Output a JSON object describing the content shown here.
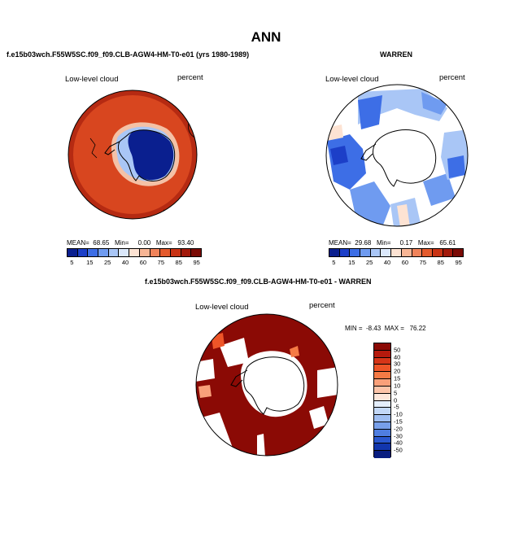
{
  "page": {
    "title": "ANN",
    "left_subtitle": "f.e15b03wch.F55W5SC.f09_f09.CLB-AGW4-HM-T0-e01 (yrs 1980-1989)",
    "right_subtitle": "WARREN",
    "bottom_subtitle": "f.e15b03wch.F55W5SC.f09_f09.CLB-AGW4-HM-T0-e01 - WARREN"
  },
  "chart_data": [
    {
      "type": "heatmap",
      "title": "f.e15b03wch.F55W5SC.f09_f09.CLB-AGW4-HM-T0-e01 (yrs 1980-1989)",
      "variable_label": "Low-level cloud",
      "units_label": "percent",
      "projection": "south polar stereographic",
      "stats": {
        "mean_label": "MEAN=",
        "mean": "68.65",
        "min_label": "Min=",
        "min": "0.00",
        "max_label": "Max=",
        "max": "93.40"
      },
      "colorbar": {
        "orientation": "horizontal",
        "tick_labels": [
          "5",
          "15",
          "25",
          "40",
          "60",
          "75",
          "85",
          "95"
        ],
        "colors": [
          "#0a1f8f",
          "#1c3fc8",
          "#3d6ee6",
          "#6f9bf0",
          "#a9c6f6",
          "#dbe8fb",
          "#fde3d3",
          "#f7b595",
          "#f0835a",
          "#e45a2c",
          "#c93314",
          "#a2190b",
          "#7a0a05"
        ]
      },
      "description_values": {
        "south_pole_region": "0-5",
        "ocean_ring": "75-95"
      }
    },
    {
      "type": "heatmap",
      "title": "WARREN",
      "variable_label": "Low-level cloud",
      "units_label": "percent",
      "projection": "south polar stereographic",
      "stats": {
        "mean_label": "MEAN=",
        "mean": "29.68",
        "min_label": "Min=",
        "min": "0.17",
        "max_label": "Max=",
        "max": "65.61"
      },
      "colorbar": {
        "orientation": "horizontal",
        "tick_labels": [
          "5",
          "15",
          "25",
          "40",
          "60",
          "75",
          "85",
          "95"
        ],
        "colors": [
          "#0a1f8f",
          "#1c3fc8",
          "#3d6ee6",
          "#6f9bf0",
          "#a9c6f6",
          "#dbe8fb",
          "#fde3d3",
          "#f7b595",
          "#f0835a",
          "#e45a2c",
          "#c93314",
          "#a2190b",
          "#7a0a05"
        ]
      }
    },
    {
      "type": "heatmap",
      "title": "f.e15b03wch.F55W5SC.f09_f09.CLB-AGW4-HM-T0-e01 - WARREN",
      "variable_label": "Low-level cloud",
      "units_label": "percent",
      "projection": "south polar stereographic",
      "stats": {
        "min_label": "MIN =",
        "min": "-8.43",
        "max_label": "MAX =",
        "max": "76.22"
      },
      "colorbar": {
        "orientation": "vertical",
        "tick_labels": [
          "50",
          "40",
          "30",
          "20",
          "15",
          "10",
          "5",
          "0",
          "-5",
          "-10",
          "-15",
          "-20",
          "-30",
          "-40",
          "-50"
        ],
        "colors": [
          "#8b0a05",
          "#b51a0d",
          "#d63518",
          "#ee5528",
          "#f57a45",
          "#f9a07a",
          "#fcc4a9",
          "#fde6da",
          "#e4eefb",
          "#c3d8f7",
          "#9fbef2",
          "#779fea",
          "#4f7ee0",
          "#2a58cf",
          "#1236ad",
          "#081d80"
        ]
      }
    }
  ]
}
